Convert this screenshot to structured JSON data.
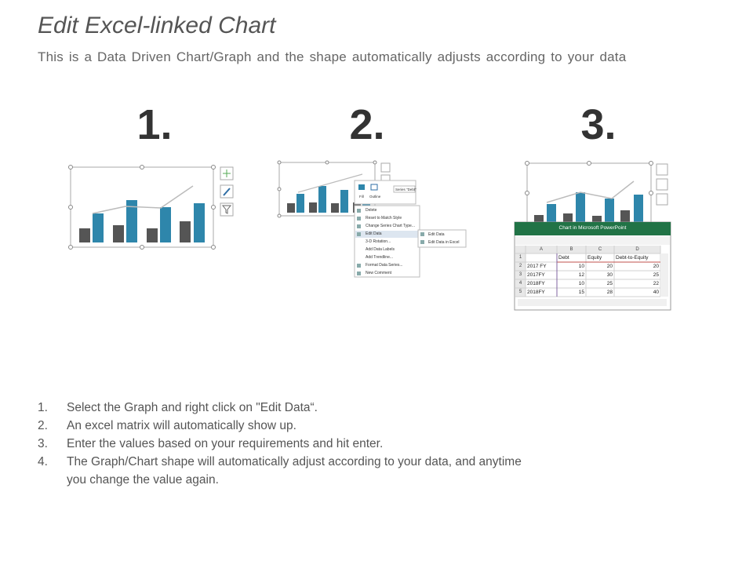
{
  "header": {
    "title": "Edit Excel-linked Chart",
    "subtitle": "This is a Data Driven Chart/Graph and the shape automatically adjusts according to your data"
  },
  "panels": [
    {
      "number": "1."
    },
    {
      "number": "2.",
      "toolbar": [
        "Fill",
        "Outline"
      ],
      "series_selector": "Series \"Debt\"",
      "menu": [
        "Delete",
        "Reset to Match Style",
        "Change Series Chart Type...",
        "Edit Data",
        "3-D Rotation...",
        "Add Data Labels",
        "Add Trendline...",
        "Format Data Series...",
        "New Comment"
      ],
      "submenu": [
        "Edit Data",
        "Edit Data in Excel"
      ]
    },
    {
      "number": "3.",
      "excel": {
        "title": "Chart in Microsoft PowerPoint",
        "columns": [
          "A",
          "B",
          "C",
          "D"
        ],
        "rows": [
          {
            "number": 1,
            "cells": [
              null,
              "Debt",
              "Equity",
              "Debt-to-Equity"
            ]
          },
          {
            "number": 2,
            "cells": [
              "2017 FY",
              10,
              20,
              20
            ]
          },
          {
            "number": 3,
            "cells": [
              "2017FY",
              12,
              30,
              25
            ]
          },
          {
            "number": 4,
            "cells": [
              "2018FY",
              10,
              25,
              22
            ]
          },
          {
            "number": 5,
            "cells": [
              "2018FY",
              15,
              28,
              40
            ]
          }
        ]
      }
    }
  ],
  "instructions": [
    {
      "number": "1.",
      "text": "Select the Graph and right click on \"Edit Data“."
    },
    {
      "number": "2.",
      "text": "An excel matrix will automatically show up."
    },
    {
      "number": "3.",
      "text": "Enter the values based on your requirements and hit enter."
    },
    {
      "number": "4.",
      "text": "The Graph/Chart shape will automatically adjust according to your data, and anytime you change the value again."
    }
  ]
}
